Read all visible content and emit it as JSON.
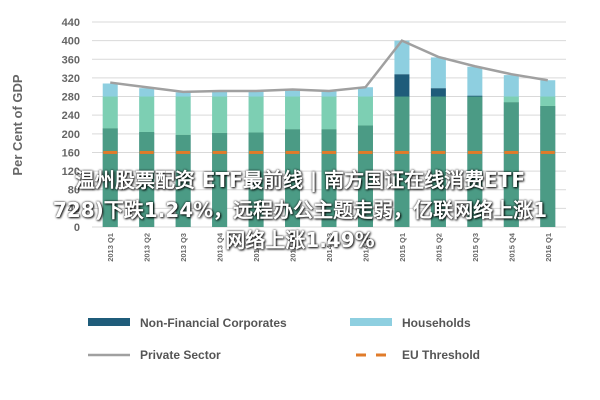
{
  "chart_data": {
    "type": "bar",
    "ylabel": "Per Cent of GDP",
    "ylim": [
      0,
      440
    ],
    "yticks": [
      0,
      40,
      80,
      120,
      160,
      200,
      240,
      280,
      320,
      360,
      400,
      440
    ],
    "categories": [
      "2013 Q1",
      "2013 Q2",
      "2013 Q3",
      "2013 Q4",
      "2014 Q1",
      "2014 Q2",
      "2014 Q3",
      "2014 Q4",
      "2015 Q1",
      "2015 Q2",
      "2015 Q3",
      "2015 Q4",
      "2016 Q1"
    ],
    "series": [
      {
        "name": "Non-Financial Corporates",
        "type": "stacked-bar",
        "color": "#1f5c7a",
        "values": [
          212,
          204,
          198,
          202,
          203,
          210,
          210,
          218,
          328,
          298,
          282,
          268,
          260
        ]
      },
      {
        "name": "Households",
        "type": "stacked-bar",
        "color": "#8ecfe0",
        "values": [
          96,
          94,
          91,
          91,
          90,
          84,
          81,
          82,
          72,
          66,
          62,
          58,
          55
        ]
      },
      {
        "name": "Private Sector",
        "type": "line",
        "color": "#a0a0a0",
        "values": [
          310,
          300,
          290,
          292,
          292,
          295,
          292,
          300,
          400,
          365,
          345,
          328,
          315
        ]
      },
      {
        "name": "EU Threshold",
        "type": "dash",
        "color": "#e07b2a",
        "values": [
          160,
          160,
          160,
          160,
          160,
          160,
          160,
          160,
          160,
          160,
          160,
          160,
          160
        ]
      }
    ],
    "legend": {
      "placement": "bottom"
    }
  },
  "overlay": {
    "line1": "温州股票配资 ETF最前线 | 南方国证在线消费ETF",
    "line2": "728)下跌1.24%，远程办公主题走弱，亿联网络上涨1",
    "line3": "网络上涨1.49%"
  },
  "colors": {
    "bar_overlay": "#6fcf8e",
    "overlay_text": "#ffffff"
  }
}
